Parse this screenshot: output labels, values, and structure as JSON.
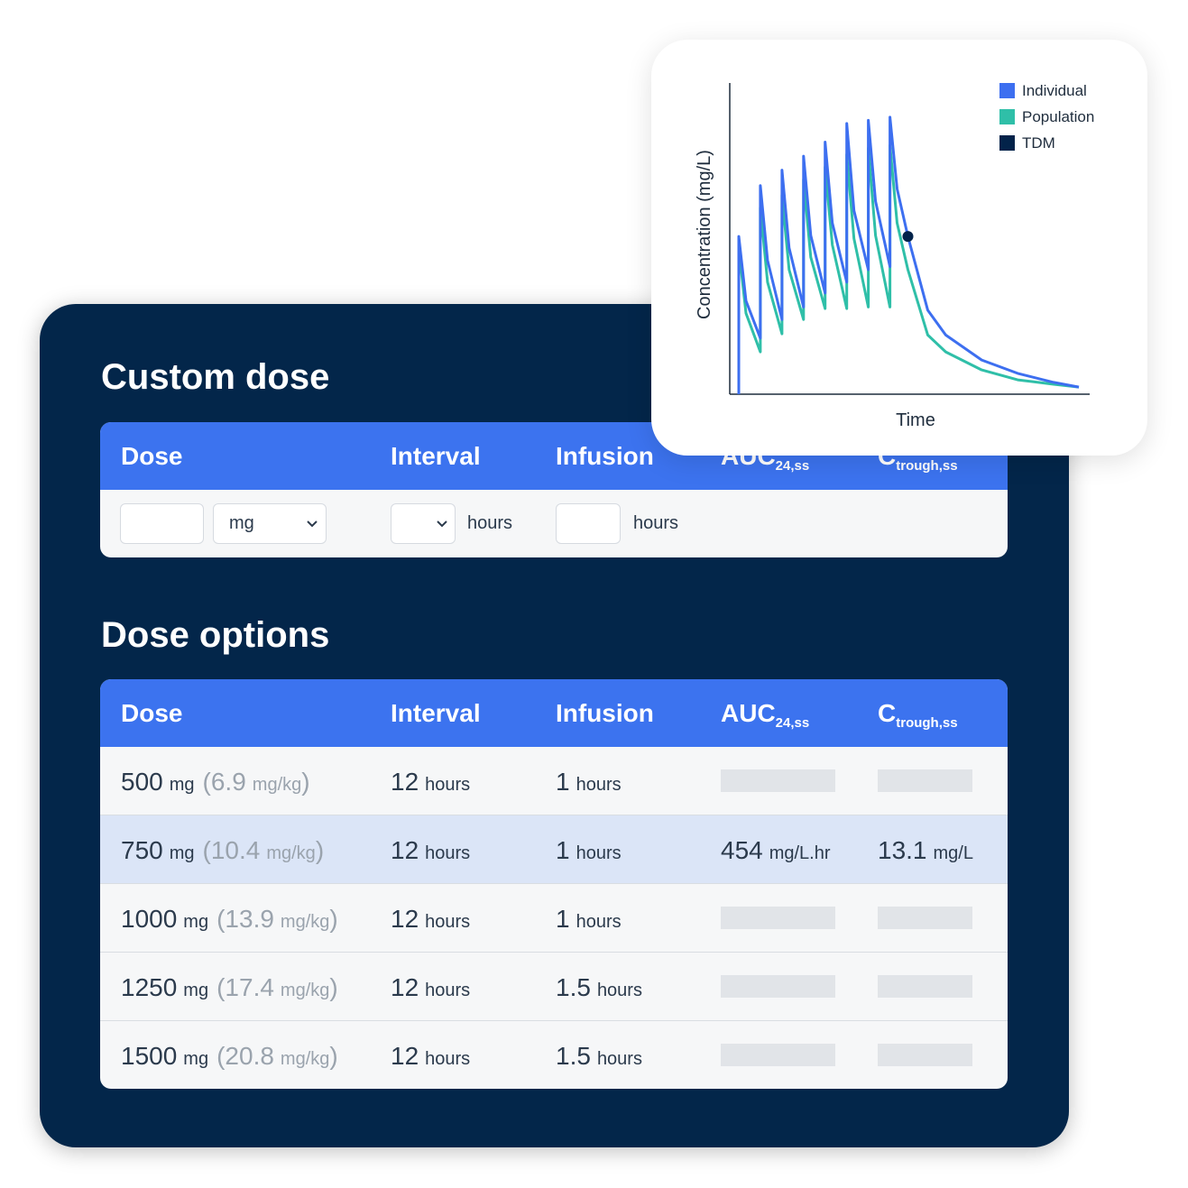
{
  "custom_dose": {
    "title": "Custom dose",
    "columns": [
      {
        "text": "Dose"
      },
      {
        "text": "Interval"
      },
      {
        "text": "Infusion"
      },
      {
        "text": "AUC",
        "sub": "24,ss"
      },
      {
        "text": "C",
        "sub": "trough,ss"
      }
    ],
    "inputs": {
      "dose_unit": "mg",
      "interval_unit": "hours",
      "infusion_unit": "hours"
    }
  },
  "dose_options": {
    "title": "Dose options",
    "columns": [
      {
        "text": "Dose"
      },
      {
        "text": "Interval"
      },
      {
        "text": "Infusion"
      },
      {
        "text": "AUC",
        "sub": "24,ss"
      },
      {
        "text": "C",
        "sub": "trough,ss"
      }
    ],
    "rows": [
      {
        "dose": 500,
        "dose_unit": "mg",
        "per_kg": {
          "open": "(",
          "value": 6.9,
          "unit": "mg/kg",
          "close": ")"
        },
        "interval": 12,
        "interval_unit": "hours",
        "infusion": 1,
        "infusion_unit": "hours",
        "auc": null,
        "ctrough": null,
        "highlighted": false
      },
      {
        "dose": 750,
        "dose_unit": "mg",
        "per_kg": {
          "open": "(",
          "value": 10.4,
          "unit": "mg/kg",
          "close": ")"
        },
        "interval": 12,
        "interval_unit": "hours",
        "infusion": 1,
        "infusion_unit": "hours",
        "auc": {
          "value": 454,
          "unit": "mg/L.hr"
        },
        "ctrough": {
          "value": 13.1,
          "unit": "mg/L"
        },
        "highlighted": true
      },
      {
        "dose": 1000,
        "dose_unit": "mg",
        "per_kg": {
          "open": "(",
          "value": 13.9,
          "unit": "mg/kg",
          "close": ")"
        },
        "interval": 12,
        "interval_unit": "hours",
        "infusion": 1,
        "infusion_unit": "hours",
        "auc": null,
        "ctrough": null,
        "highlighted": false
      },
      {
        "dose": 1250,
        "dose_unit": "mg",
        "per_kg": {
          "open": "(",
          "value": 17.4,
          "unit": "mg/kg",
          "close": ")"
        },
        "interval": 12,
        "interval_unit": "hours",
        "infusion": 1.5,
        "infusion_unit": "hours",
        "auc": null,
        "ctrough": null,
        "highlighted": false
      },
      {
        "dose": 1500,
        "dose_unit": "mg",
        "per_kg": {
          "open": "(",
          "value": 20.8,
          "unit": "mg/kg",
          "close": ")"
        },
        "interval": 12,
        "interval_unit": "hours",
        "infusion": 1.5,
        "infusion_unit": "hours",
        "auc": null,
        "ctrough": null,
        "highlighted": false
      }
    ]
  },
  "chart_data": {
    "type": "line",
    "xlabel": "Time",
    "ylabel": "Concentration (mg/L)",
    "xlim": [
      0,
      100
    ],
    "ylim": [
      0,
      100
    ],
    "legend": "top-right",
    "x": [
      2.5,
      2.5,
      4.5,
      8.5,
      8.5,
      10.5,
      14.5,
      14.5,
      16.5,
      20.5,
      20.5,
      22.5,
      26.5,
      26.5,
      28.5,
      32.5,
      32.5,
      34.5,
      38.5,
      38.5,
      40.5,
      44.5,
      44.5,
      46.5,
      49.5,
      55,
      60,
      70,
      80,
      90,
      97
    ],
    "series": [
      {
        "name": "Individual",
        "color": "#3d6ff0",
        "style": "line",
        "values": [
          0,
          50.7,
          30,
          18,
          67,
          43,
          24,
          72,
          47,
          28,
          76.5,
          51,
          32.5,
          81,
          55,
          36,
          87,
          59,
          40,
          88,
          62,
          41,
          89,
          66,
          50.7,
          27,
          19,
          11,
          6.7,
          3.8,
          2.3
        ]
      },
      {
        "name": "Population",
        "color": "#2fbfa8",
        "style": "line",
        "values": [
          0,
          47,
          26,
          13.6,
          60,
          36,
          19.4,
          64,
          40,
          24,
          69,
          44,
          27.5,
          73,
          48,
          27.5,
          77,
          50,
          28,
          79,
          51,
          28,
          80,
          55,
          40,
          19,
          13.6,
          7.8,
          4.6,
          3.2,
          2.3
        ]
      },
      {
        "name": "TDM",
        "color": "#03234a",
        "style": "point",
        "values": [
          null,
          null,
          null,
          null,
          null,
          null,
          null,
          null,
          null,
          null,
          null,
          null,
          null,
          null,
          null,
          null,
          null,
          null,
          null,
          null,
          null,
          null,
          null,
          null,
          50.7,
          null,
          null,
          null,
          null,
          null,
          null
        ]
      }
    ]
  }
}
